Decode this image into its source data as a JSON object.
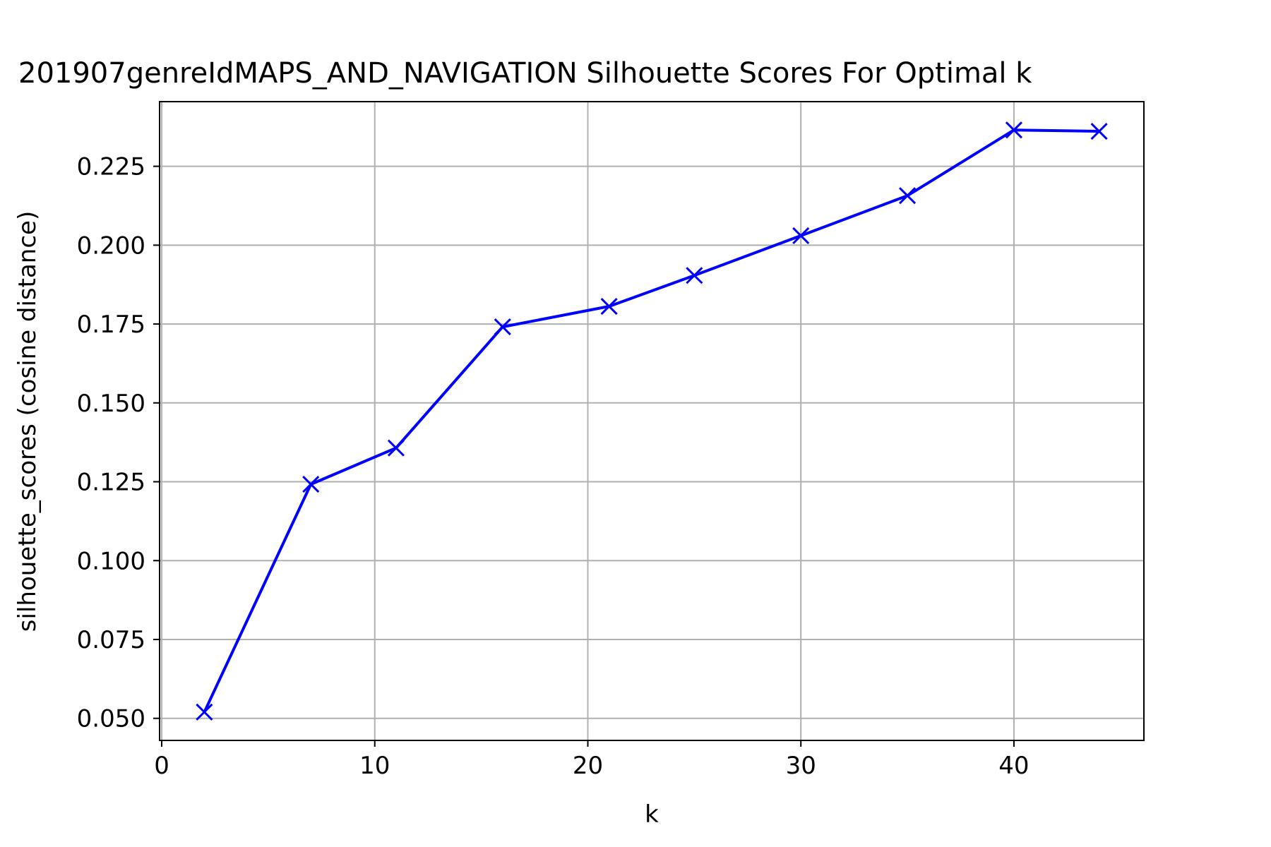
{
  "chart_data": {
    "type": "line",
    "title": "201907genreIdMAPS_AND_NAVIGATION Silhouette Scores For Optimal k",
    "xlabel": "k",
    "ylabel": "silhouette_scores (cosine distance)",
    "x": [
      2,
      7,
      11,
      16,
      21,
      25,
      30,
      35,
      40,
      44
    ],
    "series": [
      {
        "values": [
          0.052,
          0.1242,
          0.1357,
          0.1741,
          0.1806,
          0.1904,
          0.203,
          0.2157,
          0.2365,
          0.2361
        ],
        "color": "#0000ff",
        "marker": "x"
      }
    ],
    "xlim": [
      -0.1,
      46.1
    ],
    "ylim": [
      0.043,
      0.2455
    ],
    "xticks": [
      0,
      10,
      20,
      30,
      40
    ],
    "xtick_labels": [
      "0",
      "10",
      "20",
      "30",
      "40"
    ],
    "yticks": [
      0.05,
      0.075,
      0.1,
      0.125,
      0.15,
      0.175,
      0.2,
      0.225
    ],
    "ytick_labels": [
      "0.050",
      "0.075",
      "0.100",
      "0.125",
      "0.150",
      "0.175",
      "0.200",
      "0.225"
    ],
    "grid": true,
    "grid_color": "#b0b0b0"
  }
}
